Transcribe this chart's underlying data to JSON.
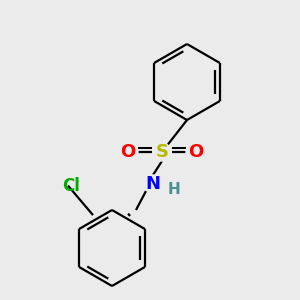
{
  "background_color": "#ebebeb",
  "bond_color": "#000000",
  "S_color": "#b8b800",
  "O_color": "#ff0000",
  "N_color": "#0000ff",
  "H_color": "#4a9090",
  "Cl_color": "#00aa00",
  "line_width": 1.6,
  "figsize": [
    3.0,
    3.0
  ],
  "dpi": 100,
  "xlim": [
    0,
    300
  ],
  "ylim": [
    0,
    300
  ]
}
